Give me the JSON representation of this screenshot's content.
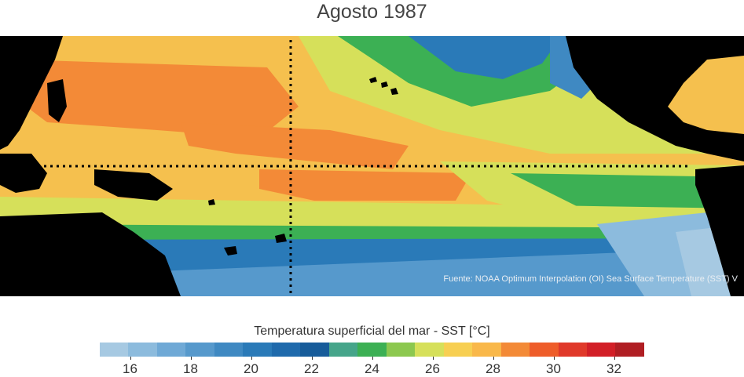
{
  "title": "Agosto 1987",
  "source_note": "Fuente: NOAA Optimum Interpolation (OI) Sea Surface Temperature (SST) V",
  "colorbar": {
    "label": "Temperatura superficial del mar - SST  [°C]",
    "min": 15,
    "max": 33,
    "ticks": [
      "16",
      "18",
      "20",
      "22",
      "24",
      "26",
      "28",
      "30",
      "32"
    ],
    "colors": [
      "#a6c9e2",
      "#8cbbdd",
      "#6fa9d6",
      "#5699cc",
      "#3f89c2",
      "#2a7ab8",
      "#1f6aac",
      "#175c9a",
      "#46a58a",
      "#3cb054",
      "#8cc84f",
      "#d6e05a",
      "#f7cf52",
      "#f9b84a",
      "#f38a37",
      "#ee5d2a",
      "#e0392a",
      "#d21f27",
      "#b01e23"
    ]
  },
  "colors": {
    "land": "#000000",
    "warm": "#f4b24a",
    "hot": "#f38a37",
    "mild": "#d6e05a",
    "green": "#3cb054",
    "cool": "#2a7ab8",
    "cold": "#8cbbdd"
  }
}
